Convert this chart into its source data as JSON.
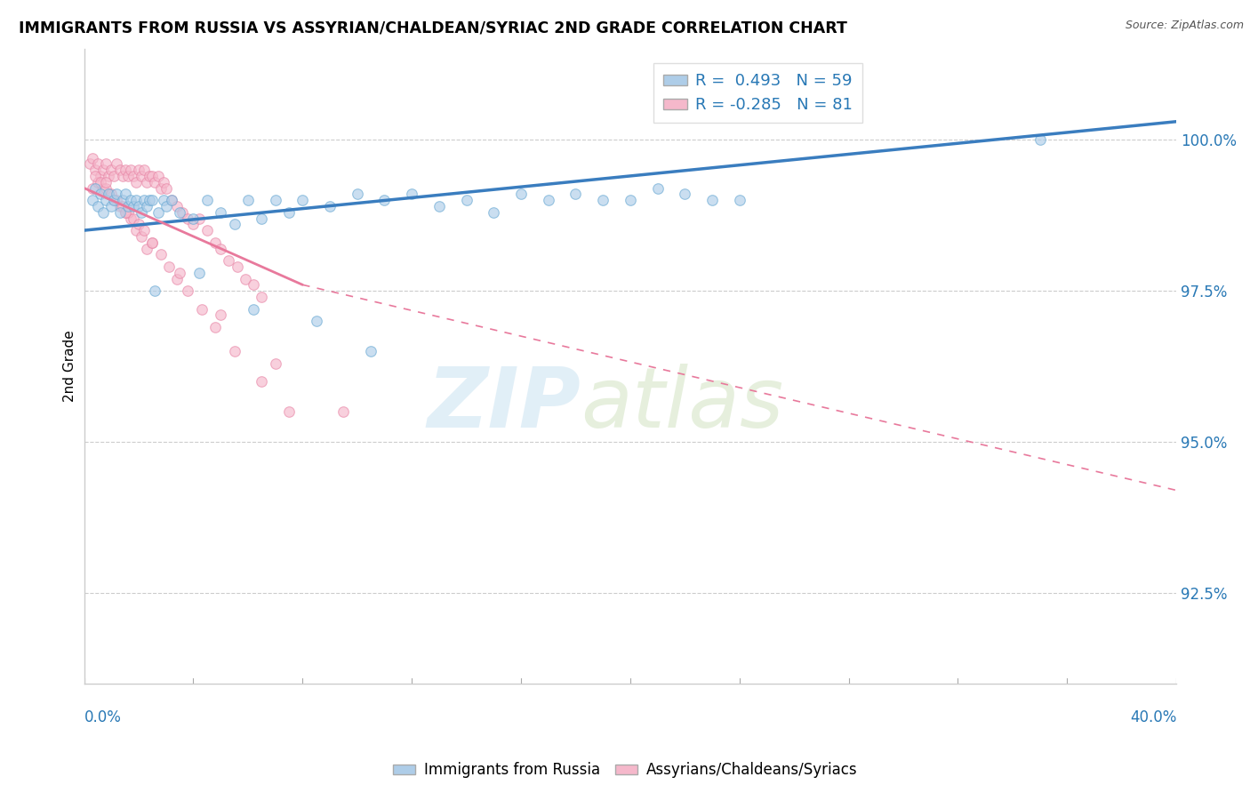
{
  "title": "IMMIGRANTS FROM RUSSIA VS ASSYRIAN/CHALDEAN/SYRIAC 2ND GRADE CORRELATION CHART",
  "source": "Source: ZipAtlas.com",
  "ylabel": "2nd Grade",
  "xmin": 0.0,
  "xmax": 40.0,
  "ymin": 91.0,
  "ymax": 101.5,
  "yticks": [
    92.5,
    95.0,
    97.5,
    100.0
  ],
  "ytick_labels": [
    "92.5%",
    "95.0%",
    "97.5%",
    "100.0%"
  ],
  "legend_blue_R": "0.493",
  "legend_blue_N": 59,
  "legend_pink_R": "-0.285",
  "legend_pink_N": 81,
  "blue_color": "#aecde8",
  "blue_edge": "#6aaad4",
  "pink_color": "#f5b8cb",
  "pink_edge": "#e888a8",
  "blue_line_color": "#3a7dbf",
  "pink_line_color": "#e8799c",
  "blue_label": "Immigrants from Russia",
  "pink_label": "Assyrians/Chaldeans/Syriacs",
  "blue_line_x0": 0.0,
  "blue_line_y0": 98.5,
  "blue_line_x1": 40.0,
  "blue_line_y1": 100.3,
  "pink_solid_x0": 0.0,
  "pink_solid_y0": 99.2,
  "pink_solid_x1": 8.0,
  "pink_solid_y1": 97.6,
  "pink_dash_x0": 8.0,
  "pink_dash_y0": 97.6,
  "pink_dash_x1": 40.0,
  "pink_dash_y1": 94.2,
  "blue_x": [
    0.3,
    0.4,
    0.5,
    0.6,
    0.7,
    0.8,
    0.9,
    1.0,
    1.1,
    1.2,
    1.3,
    1.4,
    1.5,
    1.6,
    1.7,
    1.8,
    1.9,
    2.0,
    2.1,
    2.2,
    2.3,
    2.4,
    2.5,
    2.7,
    2.9,
    3.0,
    3.2,
    3.5,
    4.0,
    4.5,
    5.0,
    5.5,
    6.0,
    6.5,
    7.0,
    7.5,
    8.0,
    9.0,
    10.0,
    11.0,
    12.0,
    13.0,
    14.0,
    15.0,
    16.0,
    17.0,
    18.0,
    19.0,
    20.0,
    21.0,
    22.0,
    23.0,
    24.0,
    2.6,
    4.2,
    6.2,
    8.5,
    10.5,
    35.0
  ],
  "blue_y": [
    99.0,
    99.2,
    98.9,
    99.1,
    98.8,
    99.0,
    99.1,
    98.9,
    99.0,
    99.1,
    98.8,
    99.0,
    99.1,
    98.9,
    99.0,
    98.9,
    99.0,
    98.9,
    98.8,
    99.0,
    98.9,
    99.0,
    99.0,
    98.8,
    99.0,
    98.9,
    99.0,
    98.8,
    98.7,
    99.0,
    98.8,
    98.6,
    99.0,
    98.7,
    99.0,
    98.8,
    99.0,
    98.9,
    99.1,
    99.0,
    99.1,
    98.9,
    99.0,
    98.8,
    99.1,
    99.0,
    99.1,
    99.0,
    99.0,
    99.2,
    99.1,
    99.0,
    99.0,
    97.5,
    97.8,
    97.2,
    97.0,
    96.5,
    100.0
  ],
  "pink_x": [
    0.2,
    0.3,
    0.4,
    0.5,
    0.6,
    0.7,
    0.8,
    0.9,
    1.0,
    1.1,
    1.2,
    1.3,
    1.4,
    1.5,
    1.6,
    1.7,
    1.8,
    1.9,
    2.0,
    2.1,
    2.2,
    2.3,
    2.4,
    2.5,
    2.6,
    2.7,
    2.8,
    2.9,
    3.0,
    3.2,
    3.4,
    3.6,
    3.8,
    4.0,
    4.2,
    4.5,
    4.8,
    5.0,
    5.3,
    5.6,
    5.9,
    6.2,
    6.5,
    0.3,
    0.5,
    0.7,
    0.9,
    1.1,
    1.3,
    1.5,
    1.7,
    1.9,
    2.1,
    2.3,
    0.4,
    0.6,
    0.8,
    1.0,
    1.2,
    1.4,
    1.6,
    1.8,
    2.0,
    2.2,
    2.5,
    2.8,
    3.1,
    3.4,
    3.8,
    4.3,
    4.8,
    5.5,
    6.5,
    7.5,
    0.8,
    1.5,
    2.5,
    3.5,
    5.0,
    7.0,
    9.5
  ],
  "pink_y": [
    99.6,
    99.7,
    99.5,
    99.6,
    99.4,
    99.5,
    99.6,
    99.4,
    99.5,
    99.4,
    99.6,
    99.5,
    99.4,
    99.5,
    99.4,
    99.5,
    99.4,
    99.3,
    99.5,
    99.4,
    99.5,
    99.3,
    99.4,
    99.4,
    99.3,
    99.4,
    99.2,
    99.3,
    99.2,
    99.0,
    98.9,
    98.8,
    98.7,
    98.6,
    98.7,
    98.5,
    98.3,
    98.2,
    98.0,
    97.9,
    97.7,
    97.6,
    97.4,
    99.2,
    99.3,
    99.2,
    99.1,
    99.0,
    98.9,
    98.8,
    98.7,
    98.5,
    98.4,
    98.2,
    99.4,
    99.3,
    99.2,
    99.1,
    99.0,
    98.9,
    98.8,
    98.7,
    98.6,
    98.5,
    98.3,
    98.1,
    97.9,
    97.7,
    97.5,
    97.2,
    96.9,
    96.5,
    96.0,
    95.5,
    99.3,
    98.8,
    98.3,
    97.8,
    97.1,
    96.3,
    95.5
  ]
}
